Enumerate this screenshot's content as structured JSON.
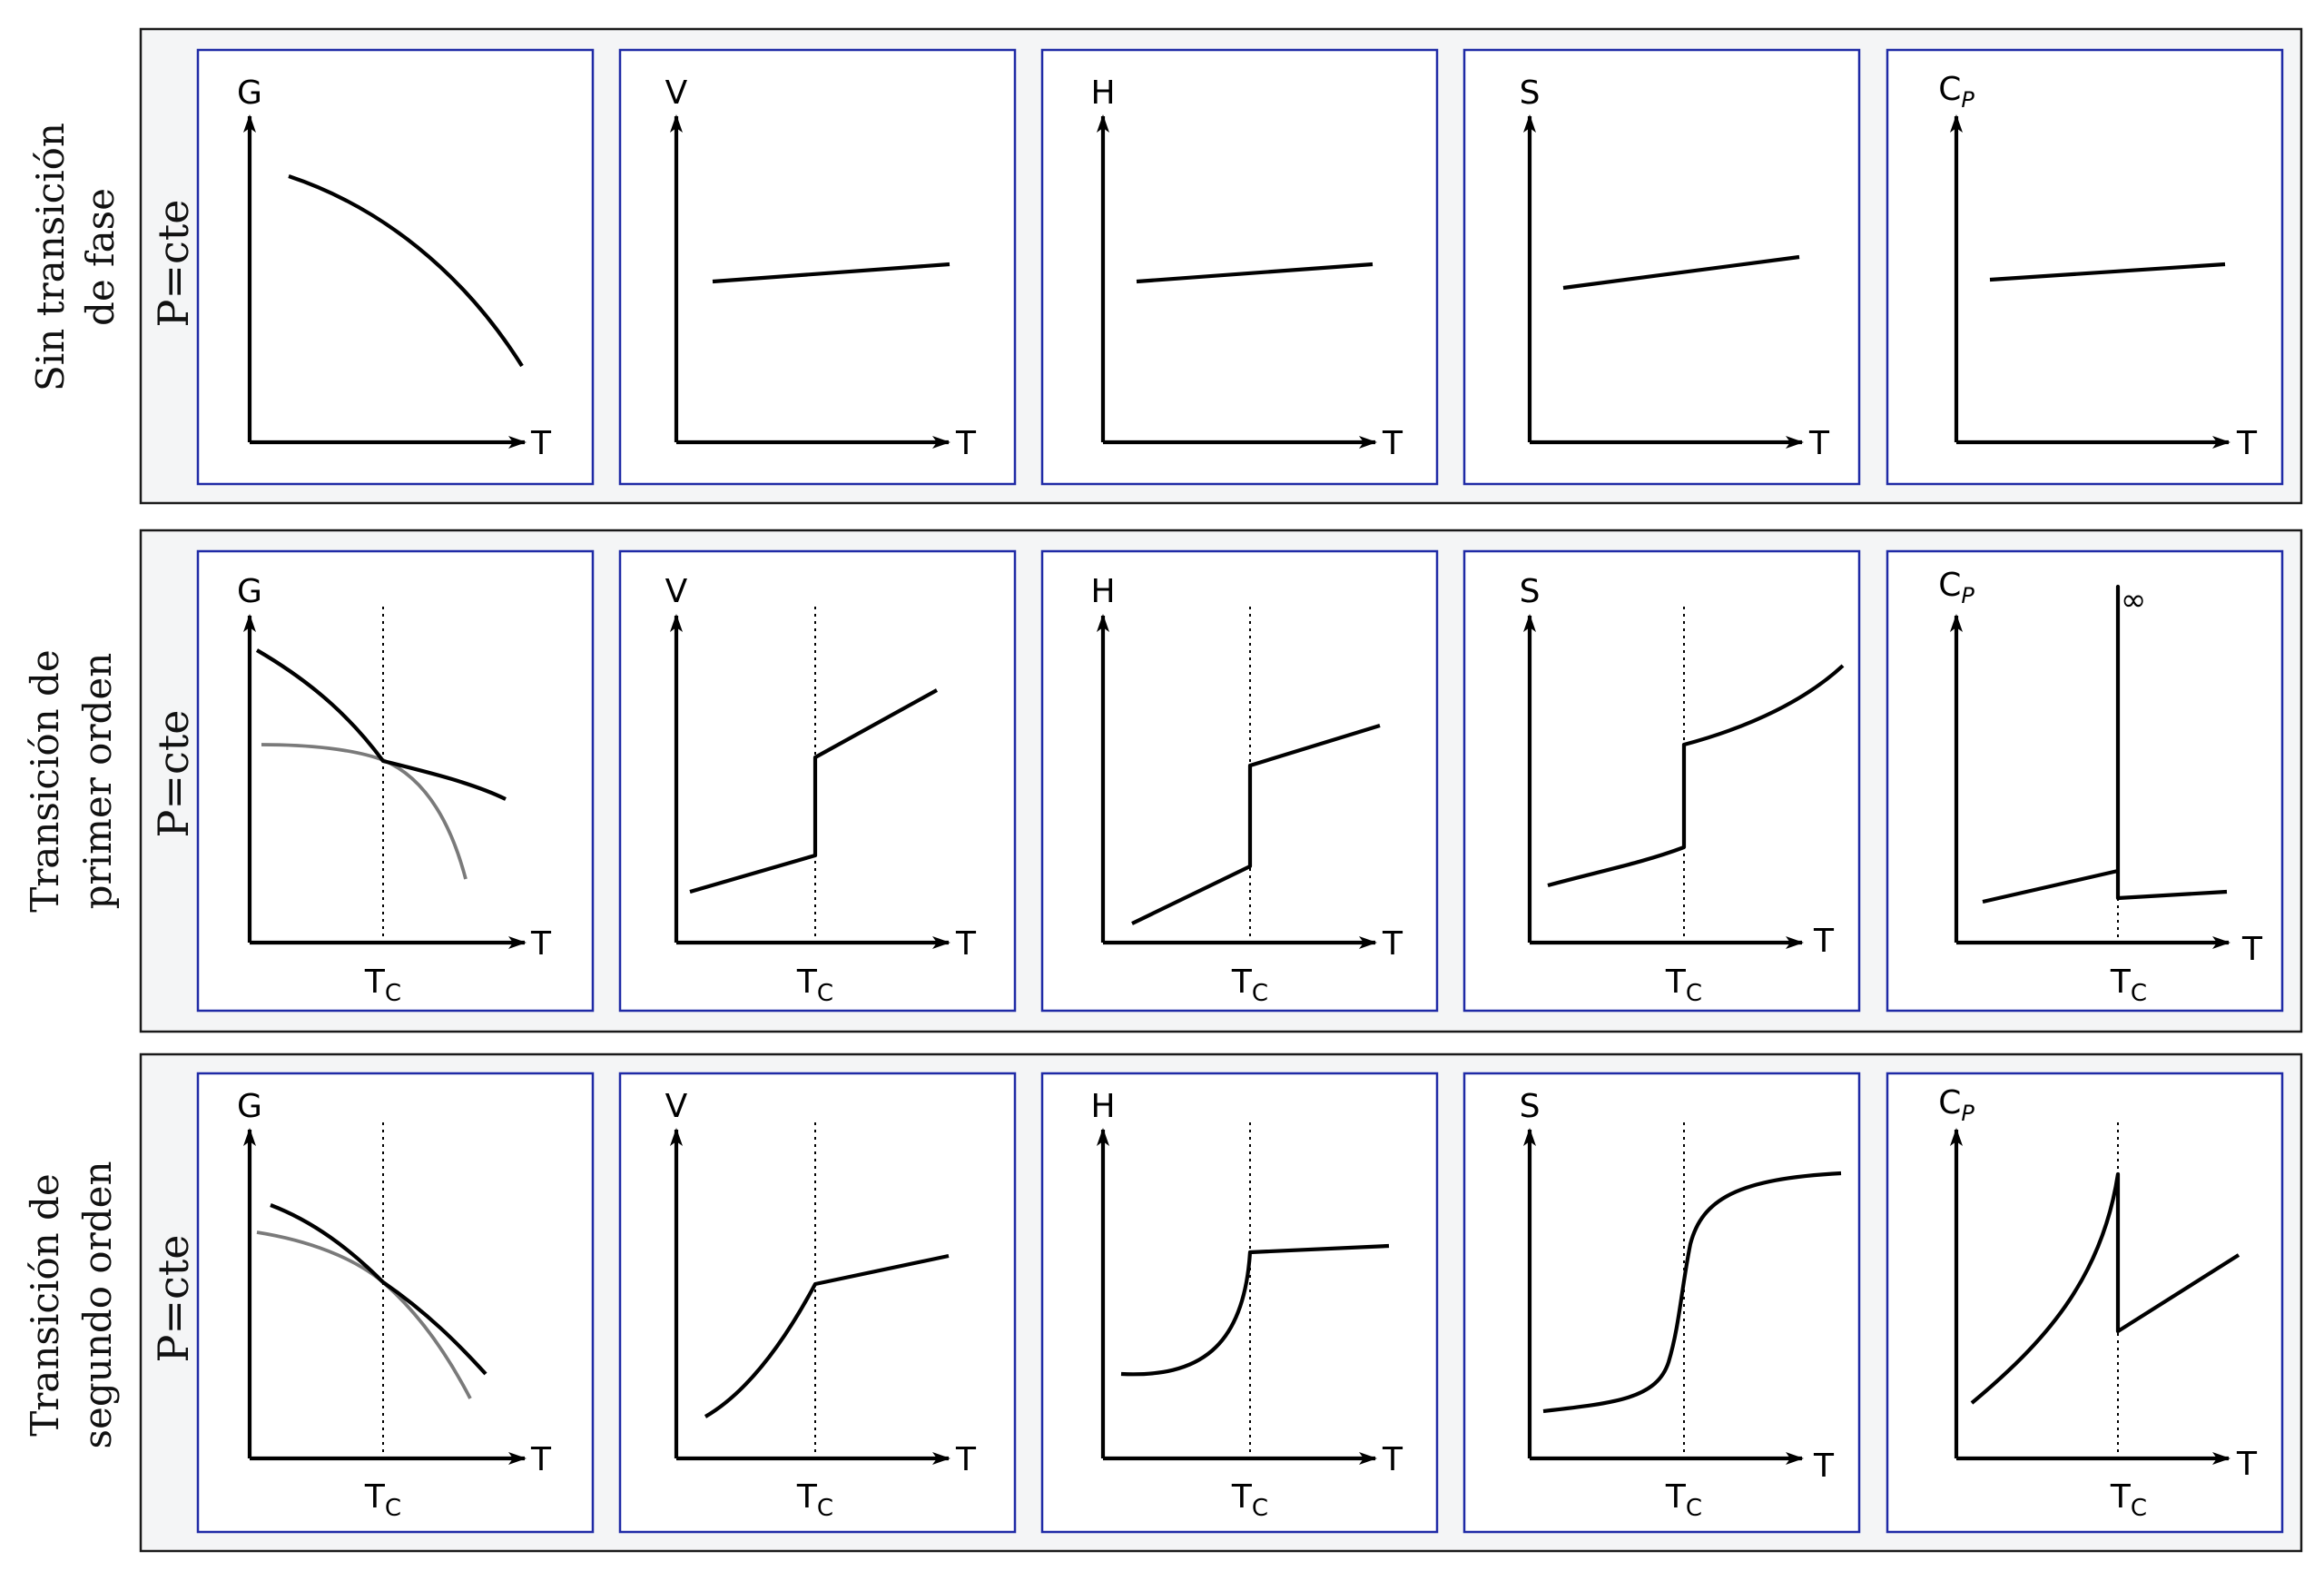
{
  "condition_label": "P=cte",
  "x_variable": "T",
  "critical_label_main": "T",
  "critical_label_sub": "C",
  "infinity_symbol": "∞",
  "rows": [
    {
      "label_line1": "Sin transición",
      "label_line2": "de fase",
      "panels": [
        {
          "y_label": "G",
          "y_sub": ""
        },
        {
          "y_label": "V",
          "y_sub": ""
        },
        {
          "y_label": "H",
          "y_sub": ""
        },
        {
          "y_label": "S",
          "y_sub": ""
        },
        {
          "y_label": "C",
          "y_sub": "P"
        }
      ]
    },
    {
      "label_line1": "Transición de",
      "label_line2": "primer orden",
      "panels": [
        {
          "y_label": "G",
          "y_sub": ""
        },
        {
          "y_label": "V",
          "y_sub": ""
        },
        {
          "y_label": "H",
          "y_sub": ""
        },
        {
          "y_label": "S",
          "y_sub": ""
        },
        {
          "y_label": "C",
          "y_sub": "P"
        }
      ]
    },
    {
      "label_line1": "Transición de",
      "label_line2": "segundo orden",
      "panels": [
        {
          "y_label": "G",
          "y_sub": ""
        },
        {
          "y_label": "V",
          "y_sub": ""
        },
        {
          "y_label": "H",
          "y_sub": ""
        },
        {
          "y_label": "S",
          "y_sub": ""
        },
        {
          "y_label": "C",
          "y_sub": "P"
        }
      ]
    }
  ],
  "colors": {
    "row_background": "#f4f5f6",
    "panel_border": "#1f2aa6",
    "stable_phase_curve": "#000000",
    "metastable_phase_curve": "#7a7a7a"
  }
}
